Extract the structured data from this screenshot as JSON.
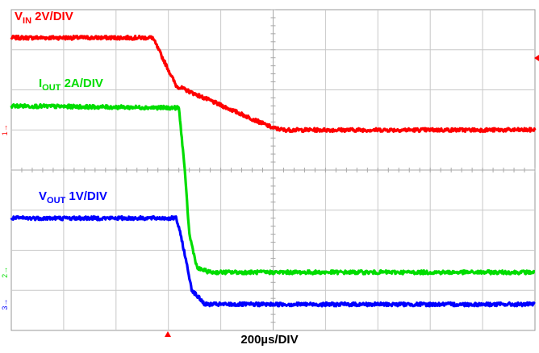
{
  "chart_data": {
    "type": "line",
    "x_unit": "div",
    "y_unit": "div",
    "xlim": [
      0,
      10
    ],
    "ylim": [
      -4,
      4
    ],
    "grid": true,
    "x_tick_label": "200µs/DIV",
    "series": [
      {
        "name": "V_IN 2V/DIV",
        "label_main": "V",
        "label_sub": "IN",
        "label_rest": " 2V/DIV",
        "color": "#ff0000",
        "marker": "1",
        "x": [
          0,
          2.7,
          3.15,
          5.0,
          5.2,
          10.0
        ],
        "y": [
          3.3,
          3.3,
          2.1,
          1.05,
          1.0,
          1.0
        ]
      },
      {
        "name": "I_OUT 2A/DIV",
        "label_main": "I",
        "label_sub": "OUT",
        "label_rest": " 2A/DIV",
        "color": "#00dd00",
        "marker": "2",
        "x": [
          0,
          3.2,
          3.3,
          3.4,
          3.55,
          3.8,
          10.0
        ],
        "y": [
          1.6,
          1.55,
          0.2,
          -1.6,
          -2.45,
          -2.55,
          -2.55
        ]
      },
      {
        "name": "V_OUT 1V/DIV",
        "label_main": "V",
        "label_sub": "OUT",
        "label_rest": " 1V/DIV",
        "color": "#0000ff",
        "marker": "3",
        "x": [
          0,
          3.15,
          3.25,
          3.45,
          3.7,
          10.0
        ],
        "y": [
          -1.2,
          -1.2,
          -1.7,
          -3.0,
          -3.35,
          -3.35
        ]
      }
    ]
  }
}
